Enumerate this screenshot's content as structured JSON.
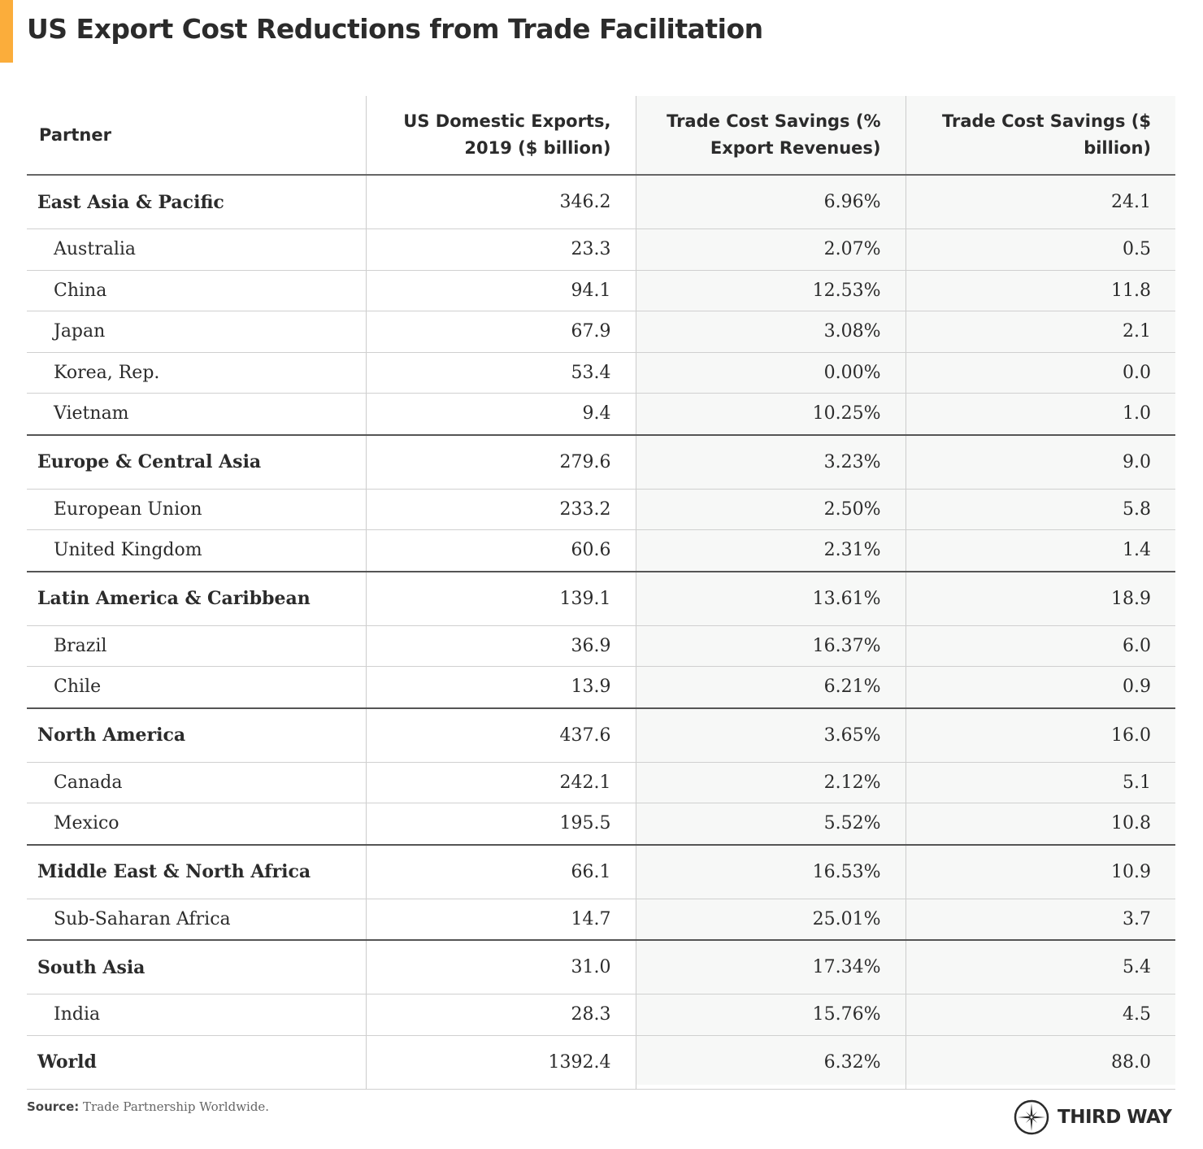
{
  "title": "US Export Cost Reductions from Trade Facilitation",
  "accent_color": "#fbad3b",
  "table": {
    "headers": [
      "Partner",
      "US Domestic Exports, 2019 ($ billion)",
      "Trade Cost Savings (% Export Revenues)",
      "Trade Cost Savings ($ billion)"
    ],
    "rows": [
      {
        "type": "region",
        "cells": [
          "East Asia & Pacific",
          "346.2",
          "6.96%",
          "24.1"
        ]
      },
      {
        "type": "country",
        "cells": [
          "Australia",
          "23.3",
          "2.07%",
          "0.5"
        ]
      },
      {
        "type": "country",
        "cells": [
          "China",
          "94.1",
          "12.53%",
          "11.8"
        ]
      },
      {
        "type": "country",
        "cells": [
          "Japan",
          "67.9",
          "3.08%",
          "2.1"
        ]
      },
      {
        "type": "country",
        "cells": [
          "Korea, Rep.",
          "53.4",
          "0.00%",
          "0.0"
        ]
      },
      {
        "type": "country",
        "end": true,
        "cells": [
          "Vietnam",
          "9.4",
          "10.25%",
          "1.0"
        ]
      },
      {
        "type": "region",
        "cells": [
          "Europe & Central Asia",
          "279.6",
          "3.23%",
          "9.0"
        ]
      },
      {
        "type": "country",
        "cells": [
          "European Union",
          "233.2",
          "2.50%",
          "5.8"
        ]
      },
      {
        "type": "country",
        "end": true,
        "cells": [
          "United Kingdom",
          "60.6",
          "2.31%",
          "1.4"
        ]
      },
      {
        "type": "region",
        "cells": [
          "Latin America & Caribbean",
          "139.1",
          "13.61%",
          "18.9"
        ]
      },
      {
        "type": "country",
        "cells": [
          "Brazil",
          "36.9",
          "16.37%",
          "6.0"
        ]
      },
      {
        "type": "country",
        "end": true,
        "cells": [
          "Chile",
          "13.9",
          "6.21%",
          "0.9"
        ]
      },
      {
        "type": "region",
        "cells": [
          "North America",
          "437.6",
          "3.65%",
          "16.0"
        ]
      },
      {
        "type": "country",
        "cells": [
          "Canada",
          "242.1",
          "2.12%",
          "5.1"
        ]
      },
      {
        "type": "country",
        "end": true,
        "cells": [
          "Mexico",
          "195.5",
          "5.52%",
          "10.8"
        ]
      },
      {
        "type": "region",
        "cells": [
          "Middle East & North Africa",
          "66.1",
          "16.53%",
          "10.9"
        ]
      },
      {
        "type": "country",
        "end": true,
        "cells": [
          "Sub-Saharan Africa",
          "14.7",
          "25.01%",
          "3.7"
        ]
      },
      {
        "type": "region",
        "cells": [
          "South Asia",
          "31.0",
          "17.34%",
          "5.4"
        ]
      },
      {
        "type": "country",
        "cells": [
          "India",
          "28.3",
          "15.76%",
          "4.5"
        ]
      },
      {
        "type": "region",
        "cells": [
          "World",
          "1392.4",
          "6.32%",
          "88.0"
        ]
      }
    ]
  },
  "source_label": "Source:",
  "source_text": "Trade Partnership Worldwide.",
  "logo_text": "THIRD WAY"
}
